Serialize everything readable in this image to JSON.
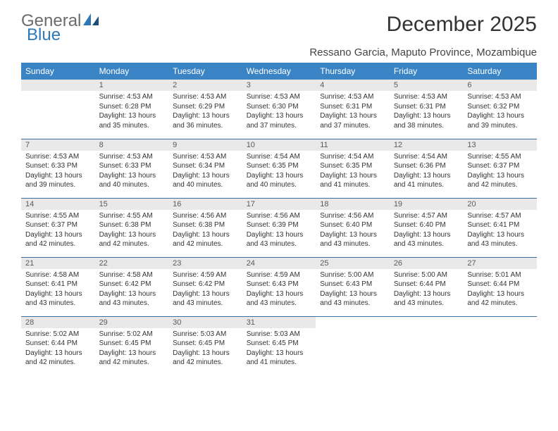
{
  "brand": {
    "general": "General",
    "blue": "Blue"
  },
  "title": "December 2025",
  "subtitle": "Ressano Garcia, Maputo Province, Mozambique",
  "header_bg": "#3a84c6",
  "daynum_bg": "#e9e9e9",
  "row_border": "#3a6fa0",
  "weekdays": [
    "Sunday",
    "Monday",
    "Tuesday",
    "Wednesday",
    "Thursday",
    "Friday",
    "Saturday"
  ],
  "weeks": [
    [
      null,
      {
        "n": "1",
        "sr": "4:53 AM",
        "ss": "6:28 PM",
        "dl": "13 hours and 35 minutes."
      },
      {
        "n": "2",
        "sr": "4:53 AM",
        "ss": "6:29 PM",
        "dl": "13 hours and 36 minutes."
      },
      {
        "n": "3",
        "sr": "4:53 AM",
        "ss": "6:30 PM",
        "dl": "13 hours and 37 minutes."
      },
      {
        "n": "4",
        "sr": "4:53 AM",
        "ss": "6:31 PM",
        "dl": "13 hours and 37 minutes."
      },
      {
        "n": "5",
        "sr": "4:53 AM",
        "ss": "6:31 PM",
        "dl": "13 hours and 38 minutes."
      },
      {
        "n": "6",
        "sr": "4:53 AM",
        "ss": "6:32 PM",
        "dl": "13 hours and 39 minutes."
      }
    ],
    [
      {
        "n": "7",
        "sr": "4:53 AM",
        "ss": "6:33 PM",
        "dl": "13 hours and 39 minutes."
      },
      {
        "n": "8",
        "sr": "4:53 AM",
        "ss": "6:33 PM",
        "dl": "13 hours and 40 minutes."
      },
      {
        "n": "9",
        "sr": "4:53 AM",
        "ss": "6:34 PM",
        "dl": "13 hours and 40 minutes."
      },
      {
        "n": "10",
        "sr": "4:54 AM",
        "ss": "6:35 PM",
        "dl": "13 hours and 40 minutes."
      },
      {
        "n": "11",
        "sr": "4:54 AM",
        "ss": "6:35 PM",
        "dl": "13 hours and 41 minutes."
      },
      {
        "n": "12",
        "sr": "4:54 AM",
        "ss": "6:36 PM",
        "dl": "13 hours and 41 minutes."
      },
      {
        "n": "13",
        "sr": "4:55 AM",
        "ss": "6:37 PM",
        "dl": "13 hours and 42 minutes."
      }
    ],
    [
      {
        "n": "14",
        "sr": "4:55 AM",
        "ss": "6:37 PM",
        "dl": "13 hours and 42 minutes."
      },
      {
        "n": "15",
        "sr": "4:55 AM",
        "ss": "6:38 PM",
        "dl": "13 hours and 42 minutes."
      },
      {
        "n": "16",
        "sr": "4:56 AM",
        "ss": "6:38 PM",
        "dl": "13 hours and 42 minutes."
      },
      {
        "n": "17",
        "sr": "4:56 AM",
        "ss": "6:39 PM",
        "dl": "13 hours and 43 minutes."
      },
      {
        "n": "18",
        "sr": "4:56 AM",
        "ss": "6:40 PM",
        "dl": "13 hours and 43 minutes."
      },
      {
        "n": "19",
        "sr": "4:57 AM",
        "ss": "6:40 PM",
        "dl": "13 hours and 43 minutes."
      },
      {
        "n": "20",
        "sr": "4:57 AM",
        "ss": "6:41 PM",
        "dl": "13 hours and 43 minutes."
      }
    ],
    [
      {
        "n": "21",
        "sr": "4:58 AM",
        "ss": "6:41 PM",
        "dl": "13 hours and 43 minutes."
      },
      {
        "n": "22",
        "sr": "4:58 AM",
        "ss": "6:42 PM",
        "dl": "13 hours and 43 minutes."
      },
      {
        "n": "23",
        "sr": "4:59 AM",
        "ss": "6:42 PM",
        "dl": "13 hours and 43 minutes."
      },
      {
        "n": "24",
        "sr": "4:59 AM",
        "ss": "6:43 PM",
        "dl": "13 hours and 43 minutes."
      },
      {
        "n": "25",
        "sr": "5:00 AM",
        "ss": "6:43 PM",
        "dl": "13 hours and 43 minutes."
      },
      {
        "n": "26",
        "sr": "5:00 AM",
        "ss": "6:44 PM",
        "dl": "13 hours and 43 minutes."
      },
      {
        "n": "27",
        "sr": "5:01 AM",
        "ss": "6:44 PM",
        "dl": "13 hours and 42 minutes."
      }
    ],
    [
      {
        "n": "28",
        "sr": "5:02 AM",
        "ss": "6:44 PM",
        "dl": "13 hours and 42 minutes."
      },
      {
        "n": "29",
        "sr": "5:02 AM",
        "ss": "6:45 PM",
        "dl": "13 hours and 42 minutes."
      },
      {
        "n": "30",
        "sr": "5:03 AM",
        "ss": "6:45 PM",
        "dl": "13 hours and 42 minutes."
      },
      {
        "n": "31",
        "sr": "5:03 AM",
        "ss": "6:45 PM",
        "dl": "13 hours and 41 minutes."
      },
      null,
      null,
      null
    ]
  ],
  "labels": {
    "sunrise": "Sunrise:",
    "sunset": "Sunset:",
    "daylight": "Daylight:"
  }
}
